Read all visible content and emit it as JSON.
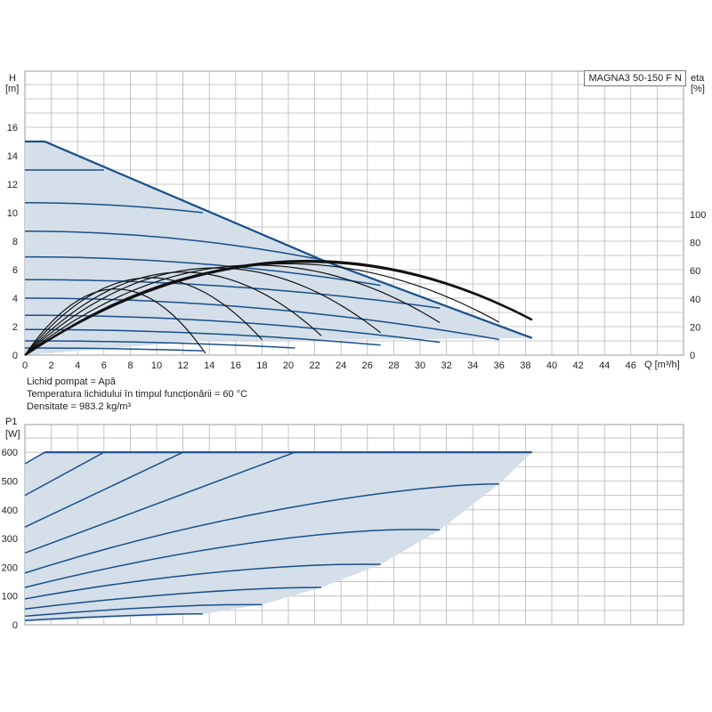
{
  "model": "MAGNA3 50-150 F N",
  "fluid_info": {
    "liquid": "Lichid pompat = Apă",
    "temperature": "Temperatura lichidului în timpul funcționării = 60 °C",
    "density": "Densitate = 983.2 kg/m³"
  },
  "colors": {
    "curve_blue": "#1a4f8a",
    "area_fill": "#d4dfea",
    "eta_curve": "#111111",
    "grid": "#b8b8b8"
  },
  "chart_data": [
    {
      "type": "line",
      "name": "head",
      "ylabel_top": "H",
      "ylabel_unit": "[m]",
      "y2label_top": "eta",
      "y2label_unit": "[%]",
      "xlabel": "Q [m³/h]",
      "xlim": [
        0,
        50
      ],
      "ylim": [
        0,
        18
      ],
      "y2lim": [
        0,
        100
      ],
      "x_ticks": [
        0,
        2,
        4,
        6,
        8,
        10,
        12,
        14,
        16,
        18,
        20,
        22,
        24,
        26,
        28,
        30,
        32,
        34,
        36,
        38,
        40,
        42,
        44,
        46
      ],
      "y_ticks": [
        0,
        2,
        4,
        6,
        8,
        10,
        12,
        14,
        16
      ],
      "y2_ticks": [
        0,
        20,
        40,
        60,
        80,
        100
      ],
      "grid": true,
      "envelope": [
        [
          0,
          15.0
        ],
        [
          1.5,
          15.0
        ],
        [
          22.5,
          6.7
        ],
        [
          38.5,
          1.2
        ],
        [
          13.5,
          1.0
        ],
        [
          0,
          0
        ]
      ],
      "max_curve": [
        [
          0,
          15.0
        ],
        [
          1.5,
          15.0
        ],
        [
          22.5,
          6.7
        ],
        [
          38.5,
          1.2
        ]
      ],
      "series": [
        {
          "shutoff": 13.0,
          "max_q": 6.0,
          "end_h": 13.0
        },
        {
          "shutoff": 10.7,
          "max_q": 13.5,
          "end_h": 10.0
        },
        {
          "shutoff": 8.7,
          "max_q": 22.5,
          "end_h": 6.7
        },
        {
          "shutoff": 6.9,
          "max_q": 27.0,
          "end_h": 4.9
        },
        {
          "shutoff": 5.3,
          "max_q": 31.5,
          "end_h": 3.3
        },
        {
          "shutoff": 4.0,
          "max_q": 36.0,
          "end_h": 1.1
        },
        {
          "shutoff": 2.8,
          "max_q": 31.5,
          "end_h": 0.9
        },
        {
          "shutoff": 1.8,
          "max_q": 27.0,
          "end_h": 0.7
        },
        {
          "shutoff": 1.0,
          "max_q": 20.5,
          "end_h": 0.5
        },
        {
          "shutoff": 0.5,
          "max_q": 13.5,
          "end_h": 0.3
        }
      ],
      "efficiency": [
        {
          "q_end": 13.7,
          "peak_q": 6.9,
          "peak": 47
        },
        {
          "q_end": 18.0,
          "peak_q": 9.5,
          "peak": 55
        },
        {
          "q_end": 22.5,
          "peak_q": 12.0,
          "peak": 59
        },
        {
          "q_end": 27.0,
          "peak_q": 14.5,
          "peak": 62
        },
        {
          "q_end": 31.5,
          "peak_q": 17.5,
          "peak": 64
        },
        {
          "q_end": 36.0,
          "peak_q": 20.0,
          "peak": 65
        },
        {
          "q_end": 38.5,
          "peak_q": 21.5,
          "peak": 66
        },
        {
          "q_end": 38.5,
          "peak_q": 21.5,
          "peak": 67
        }
      ]
    },
    {
      "type": "line",
      "name": "power",
      "ylabel_top": "P1",
      "ylabel_unit": "[W]",
      "xlim": [
        0,
        50
      ],
      "ylim": [
        0,
        630
      ],
      "y_ticks": [
        0,
        100,
        200,
        300,
        400,
        500,
        600
      ],
      "grid": true,
      "envelope": [
        [
          0,
          560
        ],
        [
          1.5,
          600
        ],
        [
          38.5,
          600
        ],
        [
          36.0,
          490
        ],
        [
          31.5,
          330
        ],
        [
          27.0,
          210
        ],
        [
          22.5,
          130
        ],
        [
          18.0,
          70
        ],
        [
          13.5,
          38
        ],
        [
          0,
          10
        ]
      ],
      "series": [
        {
          "points": [
            [
              0,
              560
            ],
            [
              1.5,
              600
            ]
          ]
        },
        {
          "points": [
            [
              0,
              450
            ],
            [
              6.0,
              600
            ]
          ]
        },
        {
          "points": [
            [
              0,
              340
            ],
            [
              12.0,
              600
            ]
          ]
        },
        {
          "points": [
            [
              0,
              250
            ],
            [
              20.5,
              600
            ]
          ]
        },
        {
          "points": [
            [
              0,
              180
            ],
            [
              15,
              400
            ],
            [
              30,
              490
            ],
            [
              36.0,
              490
            ]
          ]
        },
        {
          "points": [
            [
              0,
              130
            ],
            [
              15,
              300
            ],
            [
              26,
              340
            ],
            [
              31.5,
              330
            ]
          ]
        },
        {
          "points": [
            [
              0,
              90
            ],
            [
              12,
              190
            ],
            [
              22,
              215
            ],
            [
              27.0,
              210
            ]
          ]
        },
        {
          "points": [
            [
              0,
              55
            ],
            [
              10,
              110
            ],
            [
              18,
              130
            ],
            [
              22.5,
              130
            ]
          ]
        },
        {
          "points": [
            [
              0,
              30
            ],
            [
              8,
              60
            ],
            [
              14,
              72
            ],
            [
              18.0,
              70
            ]
          ]
        },
        {
          "points": [
            [
              0,
              15
            ],
            [
              6,
              30
            ],
            [
              11,
              38
            ],
            [
              13.5,
              38
            ]
          ]
        }
      ]
    }
  ]
}
